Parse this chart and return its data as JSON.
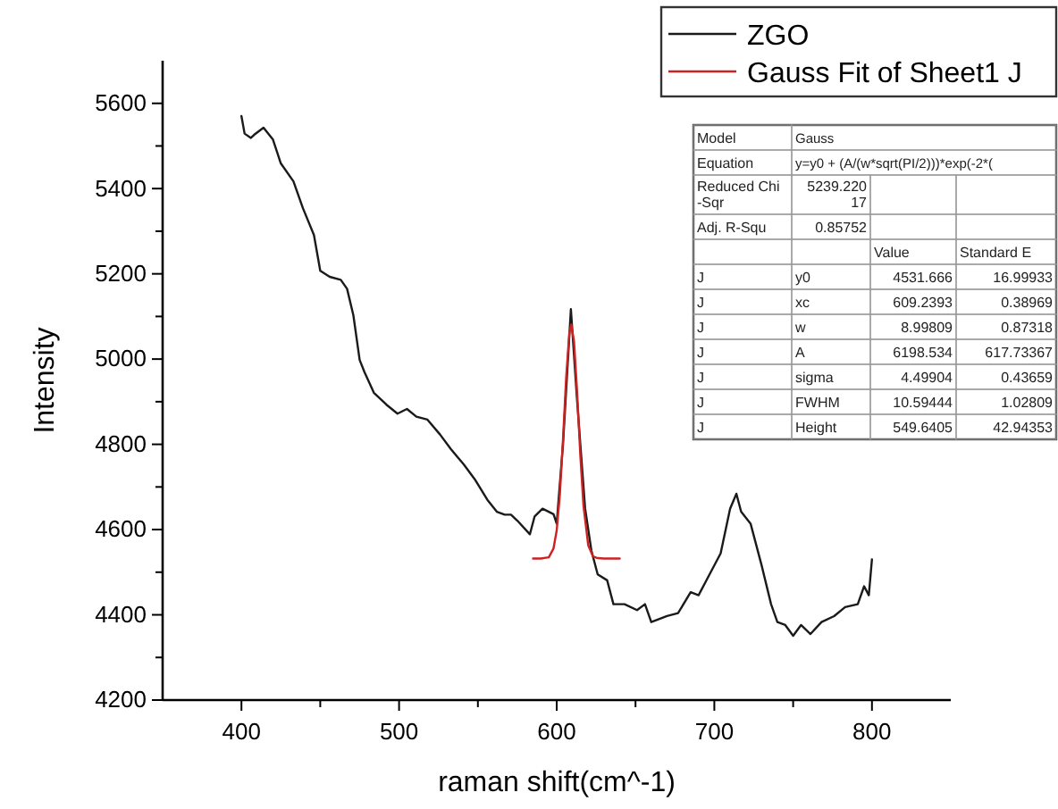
{
  "chart_data": {
    "type": "line",
    "xlabel": "raman shift(cm^-1)",
    "ylabel": "Intensity",
    "xlim": [
      350,
      850
    ],
    "xticks": [
      400,
      {
        "value": 450,
        "label": null
      },
      500,
      {
        "value": 550,
        "label": null
      },
      600,
      {
        "value": 650,
        "label": null
      },
      700,
      {
        "value": 750,
        "label": null
      },
      800
    ],
    "ylim": [
      4200,
      5700
    ],
    "yticks": [
      4200,
      {
        "value": 4300,
        "label": null
      },
      4400,
      {
        "value": 4500,
        "label": null
      },
      4600,
      {
        "value": 4700,
        "label": null
      },
      4800,
      {
        "value": 4900,
        "label": null
      },
      5000,
      {
        "value": 5100,
        "label": null
      },
      5200,
      {
        "value": 5300,
        "label": null
      },
      5400,
      {
        "value": 5500,
        "label": null
      },
      5600
    ],
    "grid": false,
    "legend": "top right",
    "line_style": "solid",
    "marker": "none",
    "series": [
      {
        "name": "ZGO",
        "color": "#1a1a1a",
        "x": [
          400,
          402,
          406,
          408,
          414,
          420,
          425,
          433,
          439,
          446,
          450,
          456,
          463,
          467,
          471,
          475,
          478,
          484,
          492,
          499,
          505,
          511,
          518,
          526,
          533,
          541,
          548,
          556,
          562,
          567,
          571,
          575,
          583,
          586,
          591,
          598,
          600,
          604,
          609,
          613,
          618,
          622,
          626,
          632,
          636,
          643,
          651,
          656,
          660,
          670,
          677,
          685,
          690,
          696,
          704,
          710,
          714,
          717,
          723,
          730,
          736,
          740,
          745,
          750,
          755,
          761,
          768,
          776,
          783,
          791,
          795,
          798,
          800
        ],
        "values": [
          5570,
          5529,
          5519,
          5526,
          5543,
          5515,
          5459,
          5417,
          5354,
          5291,
          5207,
          5193,
          5186,
          5165,
          5103,
          4998,
          4970,
          4921,
          4893,
          4872,
          4883,
          4865,
          4858,
          4823,
          4788,
          4753,
          4718,
          4670,
          4642,
          4635,
          4635,
          4621,
          4589,
          4631,
          4649,
          4636,
          4614,
          4800,
          5117,
          4900,
          4650,
          4551,
          4495,
          4481,
          4425,
          4425,
          4411,
          4425,
          4383,
          4397,
          4404,
          4453,
          4446,
          4488,
          4544,
          4649,
          4684,
          4642,
          4614,
          4516,
          4425,
          4383,
          4376,
          4351,
          4376,
          4355,
          4383,
          4397,
          4418,
          4425,
          4467,
          4446,
          4530
        ]
      },
      {
        "name": "Gauss Fit of Sheet1 J",
        "color": "#cc2222",
        "x": [
          585,
          590,
          595,
          598,
          600,
          602,
          604,
          606,
          608,
          609.24,
          611,
          613,
          615,
          617,
          620,
          623,
          626,
          630,
          635,
          640
        ],
        "values": [
          4532,
          4532,
          4535,
          4556,
          4598,
          4682,
          4811,
          4956,
          5061,
          5081,
          5041,
          4919,
          4774,
          4656,
          4563,
          4537,
          4533,
          4532,
          4532,
          4532
        ]
      }
    ],
    "annotations": [
      "Model",
      "Gauss",
      "Equation",
      "y=y0 + (A/(w*sqrt(PI/2)))*exp(-2*(",
      "Reduced Chi-Sqr",
      "5239.22017",
      "Adj. R-Squ",
      "0.85752",
      "Value",
      "Standard E",
      "J",
      "y0",
      "4531.666",
      "16.99933",
      "J",
      "xc",
      "609.2393",
      "0.38969",
      "J",
      "w",
      "8.99809",
      "0.87318",
      "J",
      "A",
      "6198.534",
      "617.73367",
      "J",
      "sigma",
      "4.49904",
      "0.43659",
      "J",
      "FWHM",
      "10.59444",
      "1.02809",
      "J",
      "Height",
      "549.6405",
      "42.94353"
    ]
  }
}
